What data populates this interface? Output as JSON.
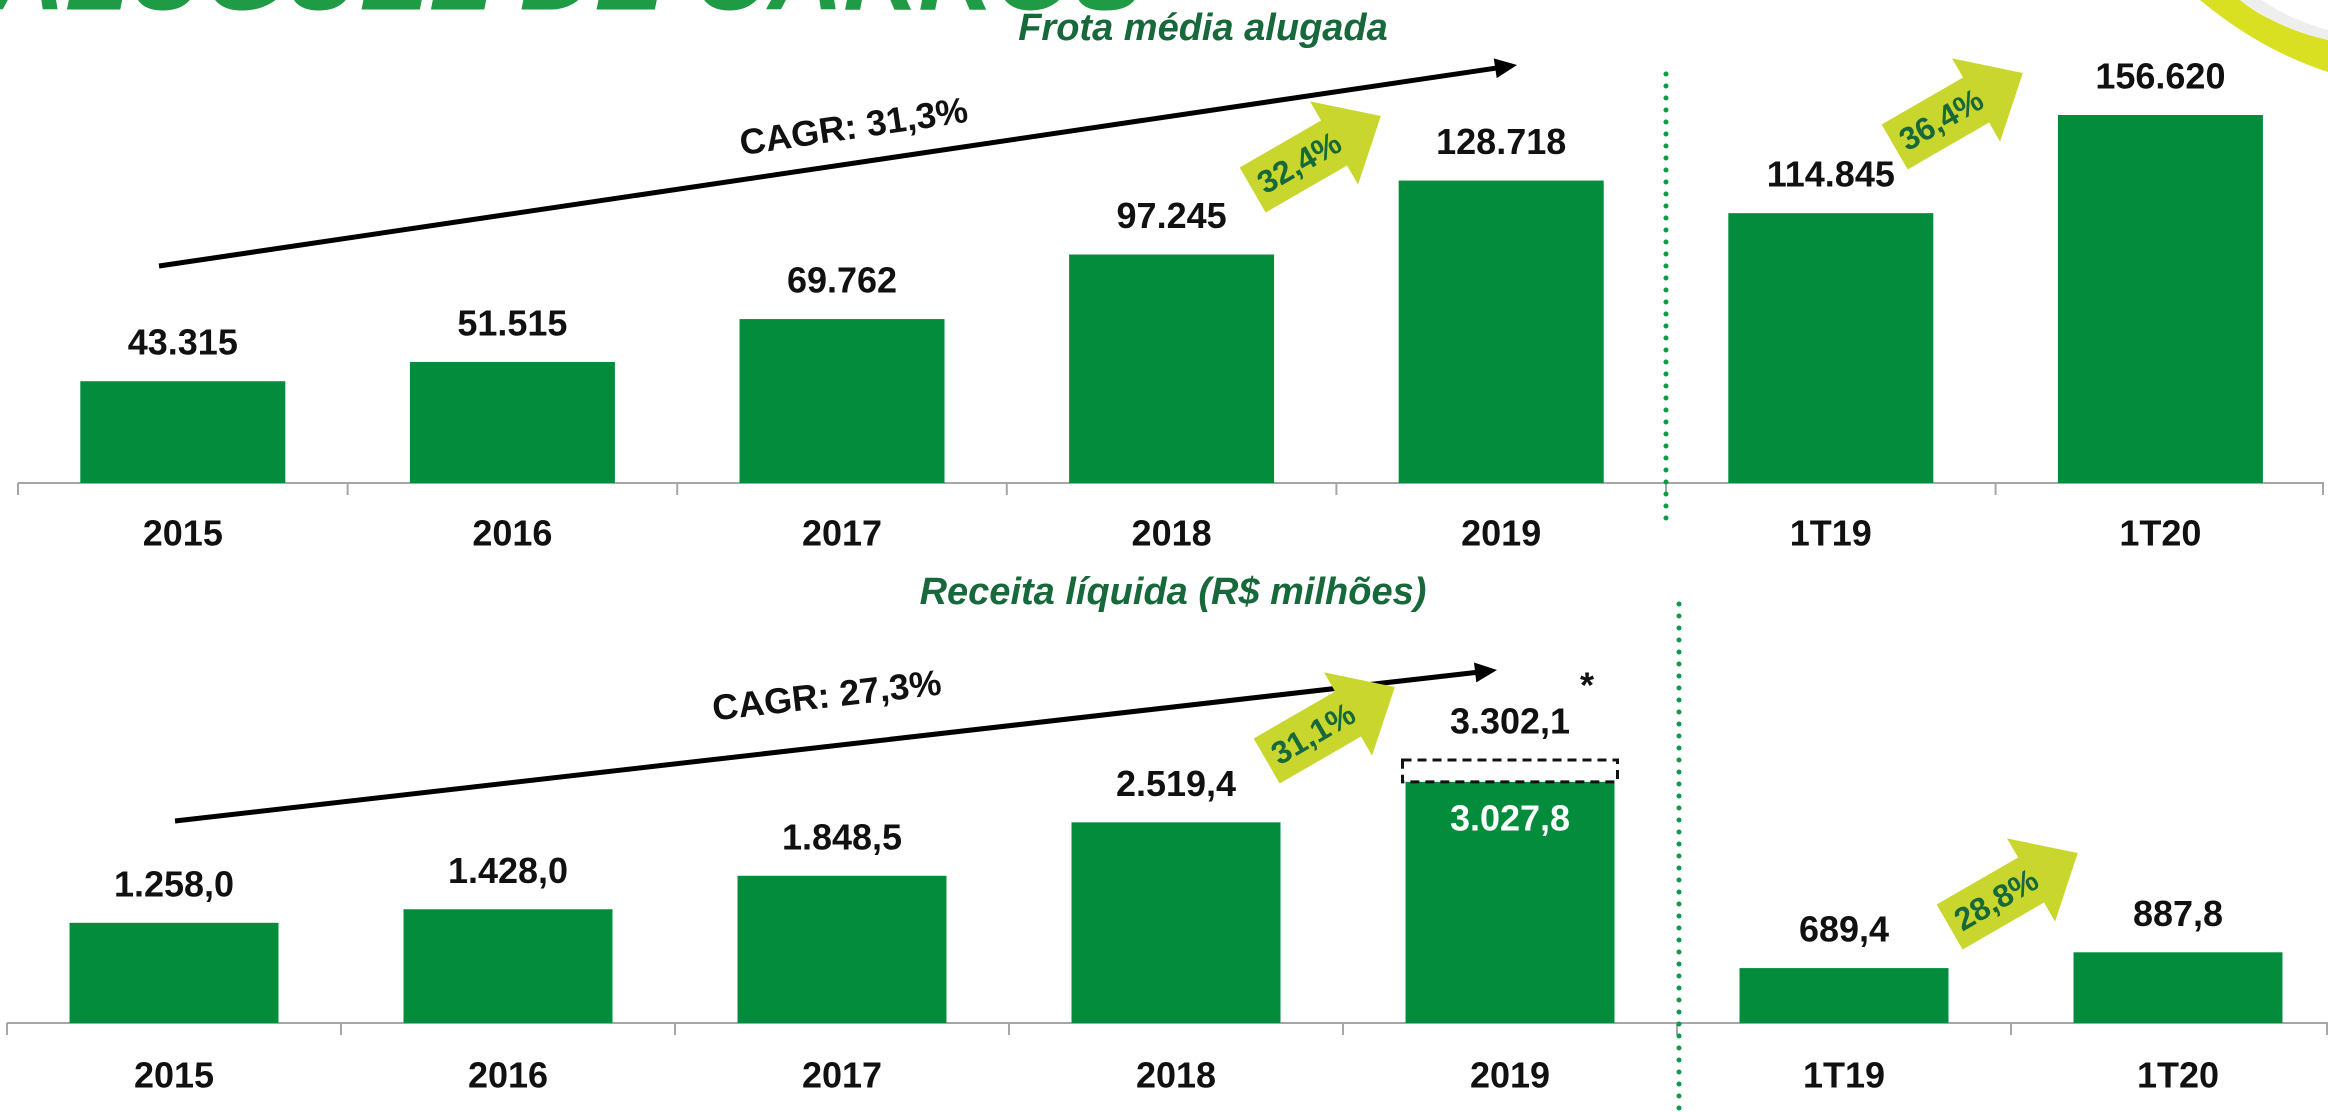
{
  "header": {
    "title": "ALUGUEL DE CARROS"
  },
  "chart_data": [
    {
      "type": "bar",
      "title": "Frota média alugada",
      "categories": [
        "2015",
        "2016",
        "2017",
        "2018",
        "2019",
        "1T19",
        "1T20"
      ],
      "values": [
        43315,
        51515,
        69762,
        97245,
        128718,
        114845,
        156620
      ],
      "value_labels": [
        "43.315",
        "51.515",
        "69.762",
        "97.245",
        "128.718",
        "114.845",
        "156.620"
      ],
      "color": "#038c3c",
      "annotations": {
        "cagr": "CAGR: 31,3%",
        "growth": [
          "32,4%",
          "36,4%"
        ]
      }
    },
    {
      "type": "bar",
      "title": "Receita líquida (R$ milhões)",
      "categories": [
        "2015",
        "2016",
        "2017",
        "2018",
        "2019",
        "1T19",
        "1T20"
      ],
      "values": [
        1258.0,
        1428.0,
        1848.5,
        2519.4,
        3027.8,
        689.4,
        887.8
      ],
      "value_labels": [
        "1.258,0",
        "1.428,0",
        "1.848,5",
        "2.519,4",
        "3.027,8",
        "689,4",
        "887,8"
      ],
      "color": "#038c3c",
      "adjusted_value": 3302.1,
      "adjusted_label": "3.302,1",
      "adjusted_note": "*",
      "annotations": {
        "cagr": "CAGR: 27,3%",
        "growth": [
          "31,1%",
          "28,8%"
        ]
      }
    }
  ]
}
